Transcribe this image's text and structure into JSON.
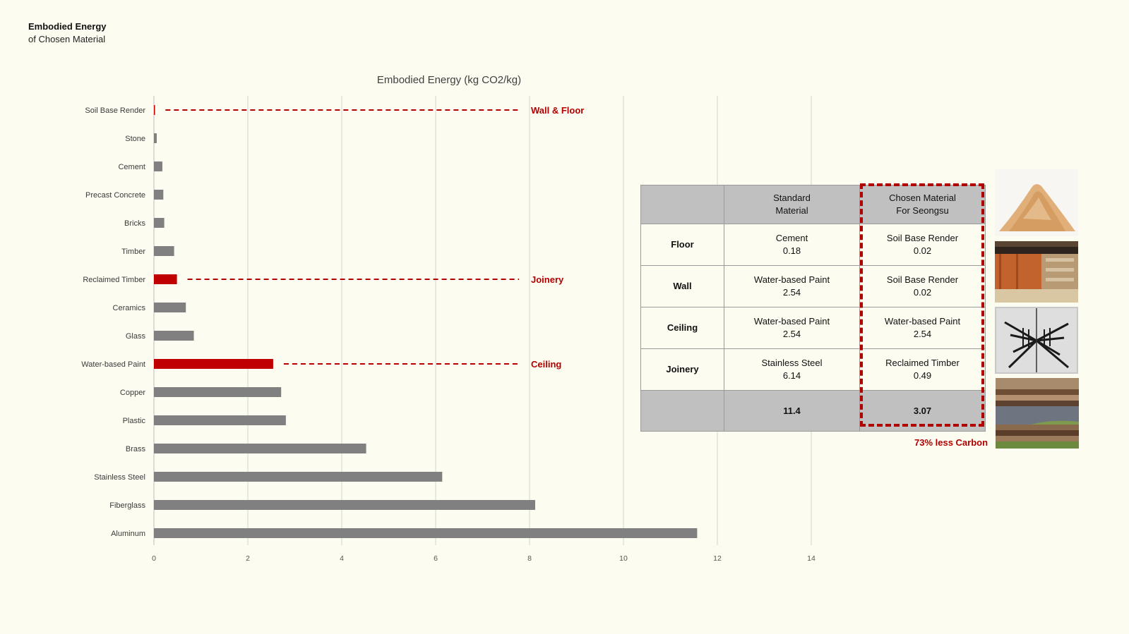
{
  "heading": {
    "title": "Embodied Energy",
    "subtitle": "of Chosen Material"
  },
  "chart_data": {
    "type": "bar",
    "orientation": "horizontal",
    "title": "Embodied Energy (kg CO2/kg)",
    "xlabel": "",
    "ylabel": "",
    "xlim": [
      0,
      14
    ],
    "xticks": [
      0,
      2,
      4,
      6,
      8,
      10,
      12,
      14
    ],
    "grid": true,
    "categories": [
      "Soil Base Render",
      "Stone",
      "Cement",
      "Precast Concrete",
      "Bricks",
      "Timber",
      "Reclaimed Timber",
      "Ceramics",
      "Glass",
      "Water-based Paint",
      "Copper",
      "Plastic",
      "Brass",
      "Stainless Steel",
      "Fiberglass",
      "Aluminum"
    ],
    "values": [
      0.02,
      0.06,
      0.18,
      0.2,
      0.22,
      0.43,
      0.49,
      0.68,
      0.85,
      2.54,
      2.71,
      2.81,
      4.52,
      6.14,
      8.12,
      11.57
    ],
    "highlighted": [
      "Soil Base Render",
      "Reclaimed Timber",
      "Water-based Paint"
    ],
    "colors": {
      "default": "#808080",
      "highlight": "#c00000",
      "callout": "#b00000",
      "grid": "#d4d4d4"
    },
    "annotations": [
      {
        "category": "Soil Base Render",
        "text": "Wall & Floor"
      },
      {
        "category": "Reclaimed Timber",
        "text": "Joinery"
      },
      {
        "category": "Water-based Paint",
        "text": "Ceiling"
      }
    ]
  },
  "comparison": {
    "header": {
      "row_label": "",
      "standard": [
        "Standard",
        "Material"
      ],
      "chosen": [
        "Chosen Material",
        "For Seongsu"
      ]
    },
    "rows": [
      {
        "label": "Floor",
        "standard_name": "Cement",
        "standard_value": "0.18",
        "chosen_name": "Soil Base Render",
        "chosen_value": "0.02"
      },
      {
        "label": "Wall",
        "standard_name": "Water-based Paint",
        "standard_value": "2.54",
        "chosen_name": "Soil Base Render",
        "chosen_value": "0.02"
      },
      {
        "label": "Ceiling",
        "standard_name": "Water-based Paint",
        "standard_value": "2.54",
        "chosen_name": "Water-based Paint",
        "chosen_value": "2.54"
      },
      {
        "label": "Joinery",
        "standard_name": "Stainless Steel",
        "standard_value": "6.14",
        "chosen_name": "Reclaimed Timber",
        "chosen_value": "0.49"
      }
    ],
    "total": {
      "label": "",
      "standard": "11.4",
      "chosen": "3.07"
    },
    "saving_note": "73% less Carbon"
  },
  "photos": [
    "soil-powder-photo",
    "timber-planks-photo",
    "painted-ceiling-photo",
    "reclaimed-timber-stack-photo"
  ]
}
